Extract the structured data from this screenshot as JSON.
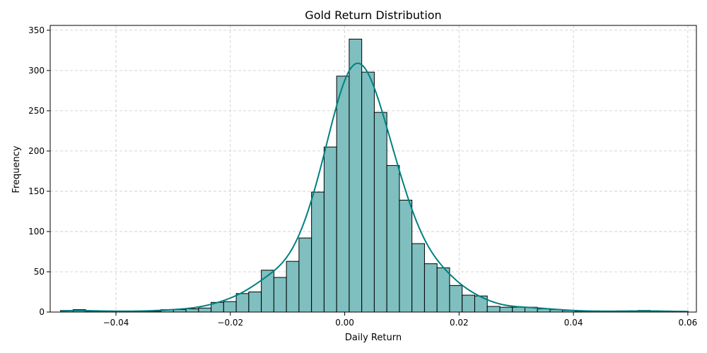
{
  "chart_data": {
    "type": "bar",
    "subtype": "histogram-with-kde",
    "title": "Gold Return Distribution",
    "xlabel": "Daily Return",
    "ylabel": "Frequency",
    "xlim": [
      -0.0515,
      0.0615
    ],
    "ylim": [
      0,
      356
    ],
    "grid": true,
    "bin_start": -0.0497,
    "bin_width": 0.002195,
    "counts": [
      2,
      3,
      1,
      1,
      1,
      1,
      1,
      1,
      3,
      3,
      4,
      5,
      12,
      13,
      23,
      25,
      52,
      43,
      63,
      92,
      149,
      205,
      293,
      339,
      298,
      248,
      182,
      139,
      85,
      60,
      55,
      33,
      21,
      20,
      7,
      6,
      6,
      6,
      4,
      3,
      2,
      1,
      1,
      1,
      1,
      1,
      2,
      1,
      1,
      1
    ],
    "kde_peak": 309,
    "xticks": [
      -0.04,
      -0.02,
      0.0,
      0.02,
      0.04,
      0.06
    ],
    "xtick_labels": [
      "−0.04",
      "−0.02",
      "0.00",
      "0.02",
      "0.04",
      "0.06"
    ],
    "yticks": [
      0,
      50,
      100,
      150,
      200,
      250,
      300,
      350
    ],
    "ytick_labels": [
      "0",
      "50",
      "100",
      "150",
      "200",
      "250",
      "300",
      "350"
    ],
    "colors": {
      "bar_fill": "#7fbfbf",
      "bar_edge": "#000000",
      "kde_line": "#008080"
    }
  }
}
